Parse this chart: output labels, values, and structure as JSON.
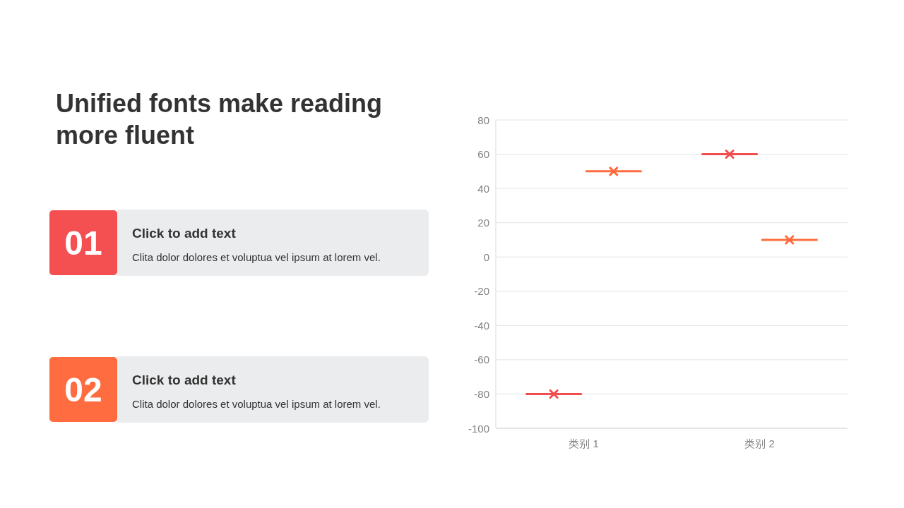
{
  "chart_data": [
    {
      "type": "other",
      "title": "Unified fonts make reading more fluent",
      "annotations": [
        "01",
        "Click to add text",
        "Clita dolor dolores et voluptua vel ipsum at lorem vel.",
        "02",
        "Click to add text",
        "Clita dolor dolores et voluptua vel ipsum at lorem vel."
      ],
      "colors": [
        "#f44f51",
        "#fe6c40"
      ]
    },
    {
      "type": "box",
      "categories": [
        "类别 1",
        "类别 2"
      ],
      "series": [
        {
          "color": "#f34c4c",
          "boxes": [
            {
              "low": -80,
              "q1": -80,
              "median": -80,
              "q3": -80,
              "high": -80,
              "mean": -80
            },
            {
              "low": 60,
              "q1": 60,
              "median": 60,
              "q3": 60,
              "high": 60,
              "mean": 60
            }
          ]
        },
        {
          "color": "#ff6b3d",
          "boxes": [
            {
              "low": 50,
              "q1": 50,
              "median": 50,
              "q3": 50,
              "high": 50,
              "mean": 50
            },
            {
              "low": 10,
              "q1": 10,
              "median": 10,
              "q3": 10,
              "high": 10,
              "mean": 10
            }
          ]
        }
      ],
      "ylim": [
        -100,
        80
      ],
      "yticks": [
        -100,
        -80,
        -60,
        -40,
        -20,
        0,
        20,
        40,
        60,
        80
      ],
      "grid": "y"
    }
  ]
}
